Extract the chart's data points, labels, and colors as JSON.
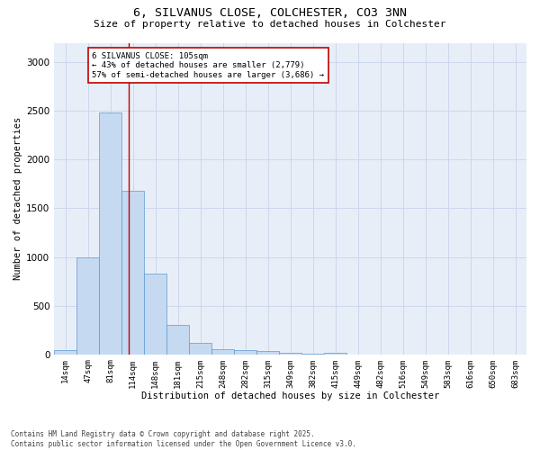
{
  "title_line1": "6, SILVANUS CLOSE, COLCHESTER, CO3 3NN",
  "title_line2": "Size of property relative to detached houses in Colchester",
  "xlabel": "Distribution of detached houses by size in Colchester",
  "ylabel": "Number of detached properties",
  "categories": [
    "14sqm",
    "47sqm",
    "81sqm",
    "114sqm",
    "148sqm",
    "181sqm",
    "215sqm",
    "248sqm",
    "282sqm",
    "315sqm",
    "349sqm",
    "382sqm",
    "415sqm",
    "449sqm",
    "482sqm",
    "516sqm",
    "549sqm",
    "583sqm",
    "616sqm",
    "650sqm",
    "683sqm"
  ],
  "values": [
    40,
    1000,
    2480,
    1680,
    830,
    300,
    120,
    50,
    45,
    30,
    20,
    5,
    20,
    0,
    0,
    0,
    0,
    0,
    0,
    0,
    0
  ],
  "bar_color": "#c5d9f1",
  "bar_edgecolor": "#5b9bd5",
  "vline_x_index": 2.83,
  "vline_color": "#c00000",
  "annotation_text": "6 SILVANUS CLOSE: 105sqm\n← 43% of detached houses are smaller (2,779)\n57% of semi-detached houses are larger (3,686) →",
  "annotation_box_color": "#ffffff",
  "annotation_box_edgecolor": "#c00000",
  "ylim": [
    0,
    3200
  ],
  "yticks": [
    0,
    500,
    1000,
    1500,
    2000,
    2500,
    3000
  ],
  "ax_facecolor": "#e8eef8",
  "background_color": "#ffffff",
  "grid_color": "#c8d4e8",
  "footnote": "Contains HM Land Registry data © Crown copyright and database right 2025.\nContains public sector information licensed under the Open Government Licence v3.0."
}
